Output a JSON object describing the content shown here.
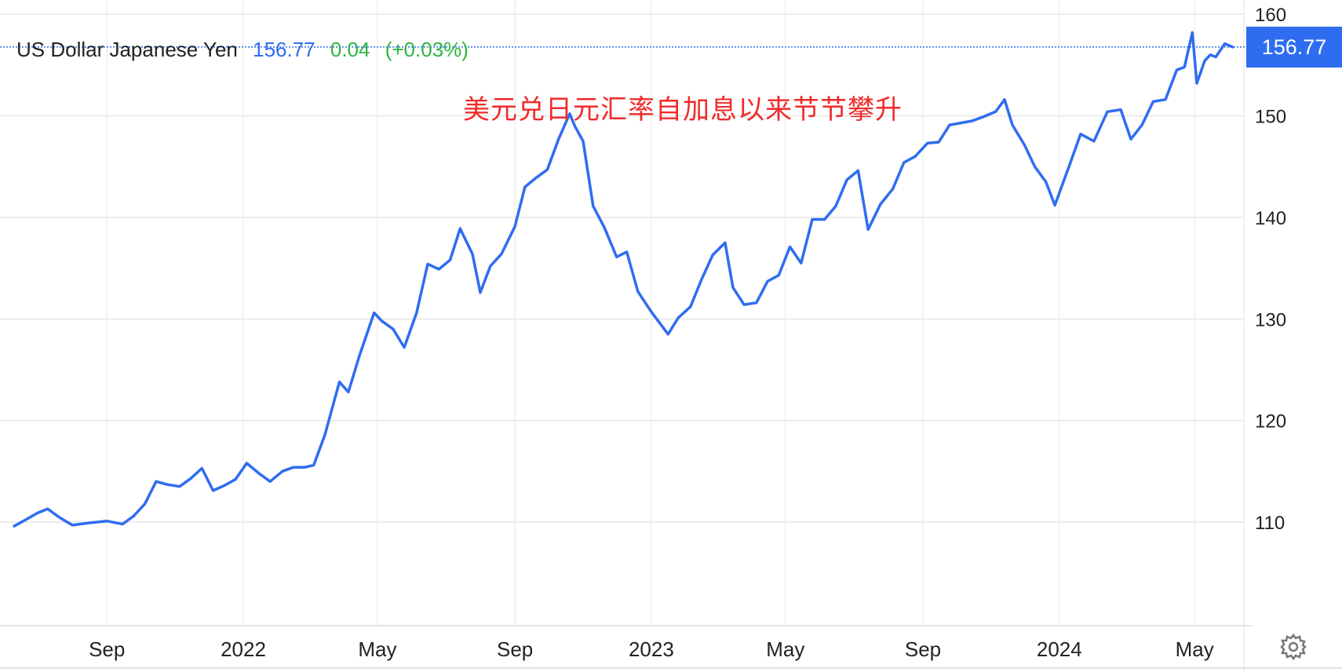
{
  "header": {
    "instrument": "US Dollar Japanese Yen",
    "last": "156.77",
    "change": "0.04",
    "change_pct": "(+0.03%)"
  },
  "annotation": "美元兑日元汇率自加息以来节节攀升",
  "last_price_badge": "156.77",
  "icons": {
    "settings": "gear-icon"
  },
  "colors": {
    "line": "#2f6df0",
    "change_up": "#2fb53f",
    "annotation": "#f02a2a",
    "grid": "#e6e6e6"
  },
  "chart_data": {
    "type": "line",
    "title": "",
    "xlabel": "",
    "ylabel": "",
    "ylim": [
      99.8,
      161.4
    ],
    "xlim": [
      "2021-06-10",
      "2024-06-05"
    ],
    "y_ticks": [
      110,
      120,
      130,
      140,
      150,
      160
    ],
    "x_ticks": [
      {
        "label": "Sep",
        "date": "2021-09-01"
      },
      {
        "label": "2022",
        "date": "2022-01-01"
      },
      {
        "label": "May",
        "date": "2022-05-01"
      },
      {
        "label": "Sep",
        "date": "2022-09-01"
      },
      {
        "label": "2023",
        "date": "2023-01-01"
      },
      {
        "label": "May",
        "date": "2023-05-01"
      },
      {
        "label": "Sep",
        "date": "2023-09-01"
      },
      {
        "label": "2024",
        "date": "2024-01-01"
      },
      {
        "label": "May",
        "date": "2024-05-01"
      }
    ],
    "grid": true,
    "reference_line": 156.77,
    "series": [
      {
        "name": "",
        "x": [
          "2021-06-10",
          "2021-06-20",
          "2021-07-01",
          "2021-07-10",
          "2021-07-20",
          "2021-08-01",
          "2021-08-15",
          "2021-09-01",
          "2021-09-15",
          "2021-09-25",
          "2021-10-05",
          "2021-10-15",
          "2021-10-25",
          "2021-11-05",
          "2021-11-15",
          "2021-11-25",
          "2021-12-05",
          "2021-12-15",
          "2021-12-25",
          "2022-01-04",
          "2022-01-15",
          "2022-01-25",
          "2022-02-05",
          "2022-02-15",
          "2022-02-25",
          "2022-03-05",
          "2022-03-15",
          "2022-03-28",
          "2022-04-05",
          "2022-04-15",
          "2022-04-28",
          "2022-05-05",
          "2022-05-15",
          "2022-05-25",
          "2022-06-05",
          "2022-06-15",
          "2022-06-25",
          "2022-07-05",
          "2022-07-14",
          "2022-07-25",
          "2022-08-01",
          "2022-08-10",
          "2022-08-20",
          "2022-09-01",
          "2022-09-10",
          "2022-09-20",
          "2022-09-30",
          "2022-10-10",
          "2022-10-20",
          "2022-10-25",
          "2022-11-01",
          "2022-11-10",
          "2022-11-20",
          "2022-12-01",
          "2022-12-10",
          "2022-12-20",
          "2023-01-01",
          "2023-01-16",
          "2023-01-25",
          "2023-02-05",
          "2023-02-15",
          "2023-02-25",
          "2023-03-08",
          "2023-03-15",
          "2023-03-25",
          "2023-04-05",
          "2023-04-15",
          "2023-04-25",
          "2023-05-05",
          "2023-05-15",
          "2023-05-25",
          "2023-06-05",
          "2023-06-15",
          "2023-06-25",
          "2023-07-05",
          "2023-07-14",
          "2023-07-25",
          "2023-08-05",
          "2023-08-15",
          "2023-08-25",
          "2023-09-05",
          "2023-09-15",
          "2023-09-25",
          "2023-10-05",
          "2023-10-15",
          "2023-10-25",
          "2023-11-05",
          "2023-11-13",
          "2023-11-20",
          "2023-12-01",
          "2023-12-10",
          "2023-12-20",
          "2023-12-28",
          "2024-01-10",
          "2024-01-20",
          "2024-02-01",
          "2024-02-13",
          "2024-02-25",
          "2024-03-05",
          "2024-03-15",
          "2024-03-25",
          "2024-04-05",
          "2024-04-15",
          "2024-04-22",
          "2024-04-29",
          "2024-05-03",
          "2024-05-10",
          "2024-05-15",
          "2024-05-20",
          "2024-05-28",
          "2024-06-04"
        ],
        "values": [
          109.6,
          110.2,
          110.9,
          111.3,
          110.5,
          109.7,
          109.9,
          110.1,
          109.8,
          110.6,
          111.8,
          114.0,
          113.7,
          113.5,
          114.3,
          115.3,
          113.1,
          113.6,
          114.2,
          115.8,
          114.8,
          114.0,
          115.0,
          115.4,
          115.4,
          115.6,
          118.6,
          123.8,
          122.8,
          126.4,
          130.6,
          129.8,
          129.0,
          127.2,
          130.6,
          135.4,
          134.9,
          135.8,
          138.9,
          136.4,
          132.6,
          135.2,
          136.4,
          139.1,
          143.0,
          143.9,
          144.7,
          147.7,
          150.2,
          148.9,
          147.5,
          141.1,
          139.0,
          136.1,
          136.6,
          132.7,
          130.7,
          128.5,
          130.1,
          131.2,
          133.9,
          136.3,
          137.5,
          133.1,
          131.4,
          131.6,
          133.7,
          134.3,
          137.1,
          135.5,
          139.8,
          139.8,
          141.1,
          143.7,
          144.6,
          138.8,
          141.3,
          142.8,
          145.4,
          146.0,
          147.3,
          147.4,
          149.1,
          149.3,
          149.5,
          149.9,
          150.4,
          151.6,
          149.1,
          147.1,
          145.0,
          143.5,
          141.2,
          145.1,
          148.2,
          147.5,
          150.4,
          150.6,
          147.7,
          149.1,
          151.4,
          151.6,
          154.5,
          154.8,
          158.2,
          153.2,
          155.4,
          156.0,
          155.8,
          157.1,
          156.77
        ]
      }
    ]
  }
}
